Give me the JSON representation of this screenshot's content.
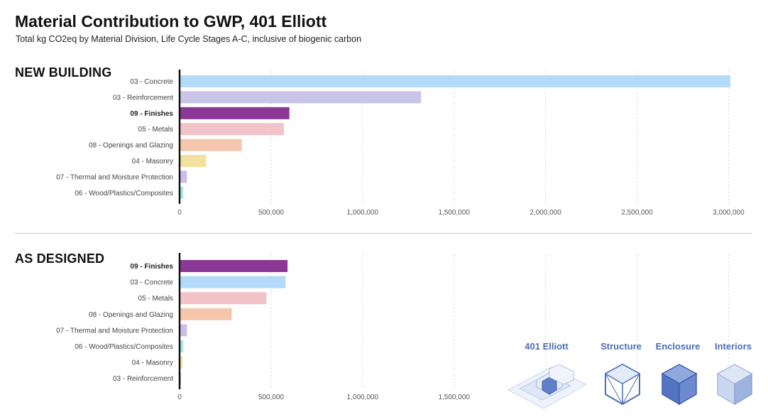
{
  "header": {
    "title": "Material Contribution to GWP, 401 Elliott",
    "subtitle": "Total kg CO2eq by Material Division, Life Cycle Stages A-C, inclusive of biogenic carbon"
  },
  "legend": {
    "items": [
      {
        "label": "401 Elliott",
        "icon": "building-massing-icon"
      },
      {
        "label": "Structure",
        "icon": "structure-cube-icon"
      },
      {
        "label": "Enclosure",
        "icon": "enclosure-cube-icon"
      },
      {
        "label": "Interiors",
        "icon": "interiors-cube-icon"
      }
    ]
  },
  "chart_data": [
    {
      "type": "bar",
      "orientation": "horizontal",
      "section_label": "NEW BUILDING",
      "categories": [
        "03 - Concrete",
        "03 - Reinforcement",
        "09 - Finishes",
        "05 - Metals",
        "08 - Openings and Glazing",
        "04 - Masonry",
        "07 - Thermal and Moisture Protection",
        "06 - Wood/Plastics/Composites"
      ],
      "values": [
        3010000,
        1320000,
        600000,
        570000,
        340000,
        145000,
        40000,
        20000
      ],
      "colors": [
        "#b3daf8",
        "#c9c5e8",
        "#8a3795",
        "#f2c3c9",
        "#f5c5ac",
        "#f2e19d",
        "#cbbde6",
        "#a6e6e2"
      ],
      "bold_categories": [
        "09 - Finishes"
      ],
      "xlim": [
        0,
        3100000
      ],
      "ticks": [
        0,
        500000,
        1000000,
        1500000,
        2000000,
        2500000,
        3000000
      ],
      "tick_labels": [
        "0",
        "500,000",
        "1,000,000",
        "1,500,000",
        "2,000,000",
        "2,500,000",
        "3,000,000"
      ],
      "grid": true
    },
    {
      "type": "bar",
      "orientation": "horizontal",
      "section_label": "AS DESIGNED",
      "categories": [
        "09 - Finishes",
        "03 - Concrete",
        "05 - Metals",
        "08 - Openings and Glazing",
        "07 - Thermal and Moisture Protection",
        "06 - Wood/Plastics/Composites",
        "04 - Masonry",
        "03 - Reinforcement"
      ],
      "values": [
        590000,
        580000,
        475000,
        285000,
        40000,
        20000,
        15000,
        8000
      ],
      "colors": [
        "#8a3795",
        "#b3daf8",
        "#f2c3c9",
        "#f5c5ac",
        "#cbbde6",
        "#a6e6e2",
        "#f2e19d",
        "#c9c5e8"
      ],
      "bold_categories": [
        "09 - Finishes"
      ],
      "xlim": [
        0,
        3100000
      ],
      "ticks": [
        0,
        500000,
        1000000,
        1500000
      ],
      "tick_labels": [
        "0",
        "500,000",
        "1,000,000",
        "1,500,000"
      ],
      "grid_ticks": [
        0,
        500000,
        1000000,
        1500000,
        2000000,
        2500000,
        3000000
      ],
      "grid": true
    }
  ]
}
